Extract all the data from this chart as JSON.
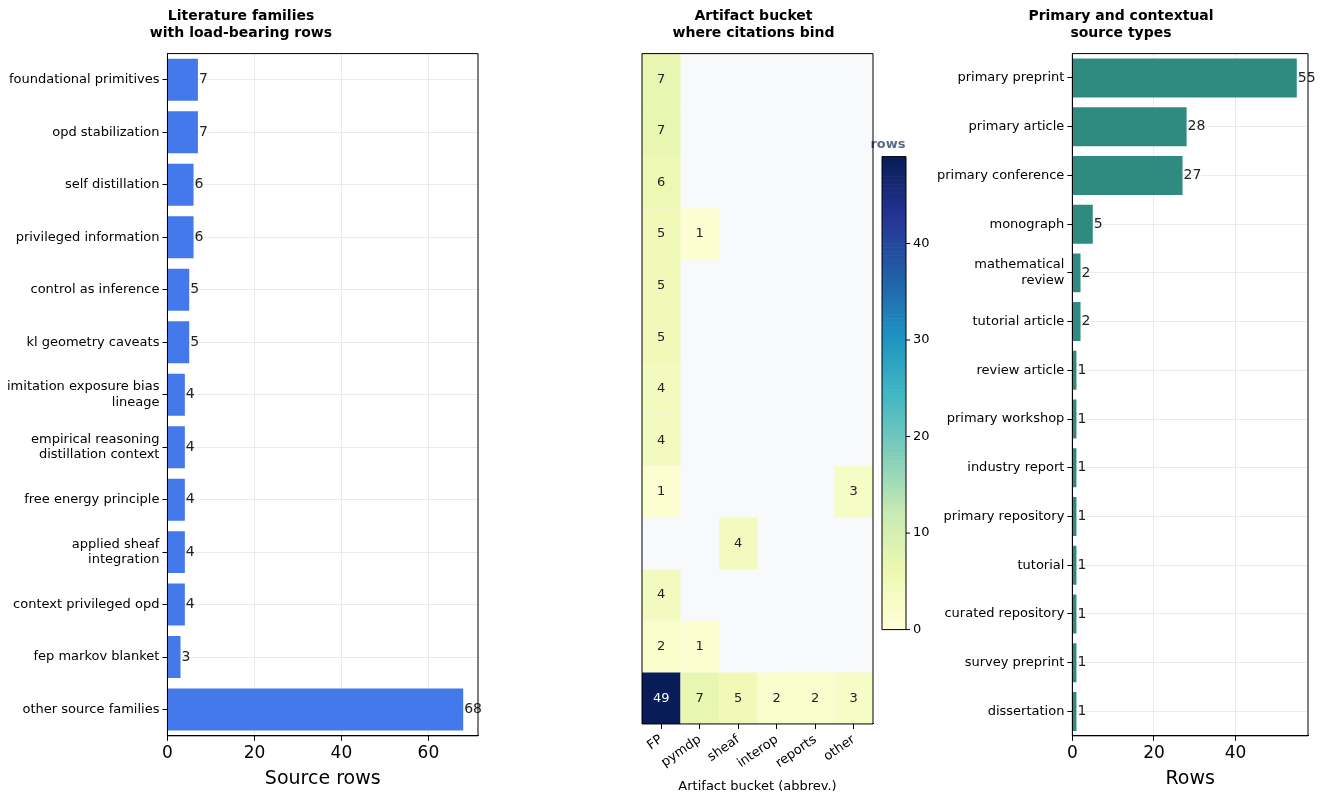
{
  "chart_data": [
    {
      "type": "bar",
      "orientation": "horizontal",
      "title": "Literature families\nwith load-bearing rows",
      "xlabel": "Source rows",
      "categories": [
        "foundational primitives",
        "opd stabilization",
        "self distillation",
        "privileged information",
        "control as inference",
        "kl geometry caveats",
        "imitation exposure bias\nlineage",
        "empirical reasoning\ndistillation context",
        "free energy principle",
        "applied sheaf\nintegration",
        "context privileged opd",
        "fep markov blanket",
        "other source families"
      ],
      "values": [
        7,
        7,
        6,
        6,
        5,
        5,
        4,
        4,
        4,
        4,
        4,
        3,
        68
      ],
      "color": "#4479eb",
      "xlim": [
        0,
        71.4
      ],
      "xticks": [
        0,
        20,
        40,
        60
      ],
      "grid": true,
      "data_labels": true,
      "legend": false
    },
    {
      "type": "heatmap",
      "title": "Artifact bucket\nwhere citations bind",
      "xlabel": "Artifact bucket (abbrev.)",
      "clabel": "rows",
      "categories": [
        "FP",
        "pymdp",
        "sheaf",
        "interop",
        "reports",
        "other"
      ],
      "y_categories": [
        null,
        null,
        null,
        null,
        null,
        null,
        null,
        null,
        null,
        null,
        null,
        null,
        null
      ],
      "cells": [
        [
          7,
          null,
          null,
          null,
          null,
          null
        ],
        [
          7,
          null,
          null,
          null,
          null,
          null
        ],
        [
          6,
          null,
          null,
          null,
          null,
          null
        ],
        [
          5,
          1,
          null,
          null,
          null,
          null
        ],
        [
          5,
          null,
          null,
          null,
          null,
          null
        ],
        [
          5,
          null,
          null,
          null,
          null,
          null
        ],
        [
          4,
          null,
          null,
          null,
          null,
          null
        ],
        [
          4,
          null,
          null,
          null,
          null,
          null
        ],
        [
          1,
          null,
          null,
          null,
          null,
          3
        ],
        [
          null,
          null,
          4,
          null,
          null,
          null
        ],
        [
          4,
          null,
          null,
          null,
          null,
          null
        ],
        [
          2,
          1,
          null,
          null,
          null,
          null
        ],
        [
          49,
          7,
          5,
          2,
          2,
          3
        ]
      ],
      "clim": [
        0,
        49
      ],
      "cticks": [
        0,
        10,
        20,
        30,
        40
      ],
      "data_labels": true,
      "legend": false
    },
    {
      "type": "bar",
      "orientation": "horizontal",
      "title": "Primary and contextual\nsource types",
      "xlabel": "Rows",
      "categories": [
        "primary preprint",
        "primary article",
        "primary conference",
        "monograph",
        "mathematical\nreview",
        "tutorial article",
        "review article",
        "primary workshop",
        "industry report",
        "primary repository",
        "tutorial",
        "curated repository",
        "survey preprint",
        "dissertation"
      ],
      "values": [
        55,
        28,
        27,
        5,
        2,
        2,
        1,
        1,
        1,
        1,
        1,
        1,
        1,
        1
      ],
      "color": "#2f8a7f",
      "xlim": [
        0,
        57.75
      ],
      "xticks": [
        0,
        20,
        40
      ],
      "grid": true,
      "data_labels": true,
      "legend": false
    }
  ]
}
